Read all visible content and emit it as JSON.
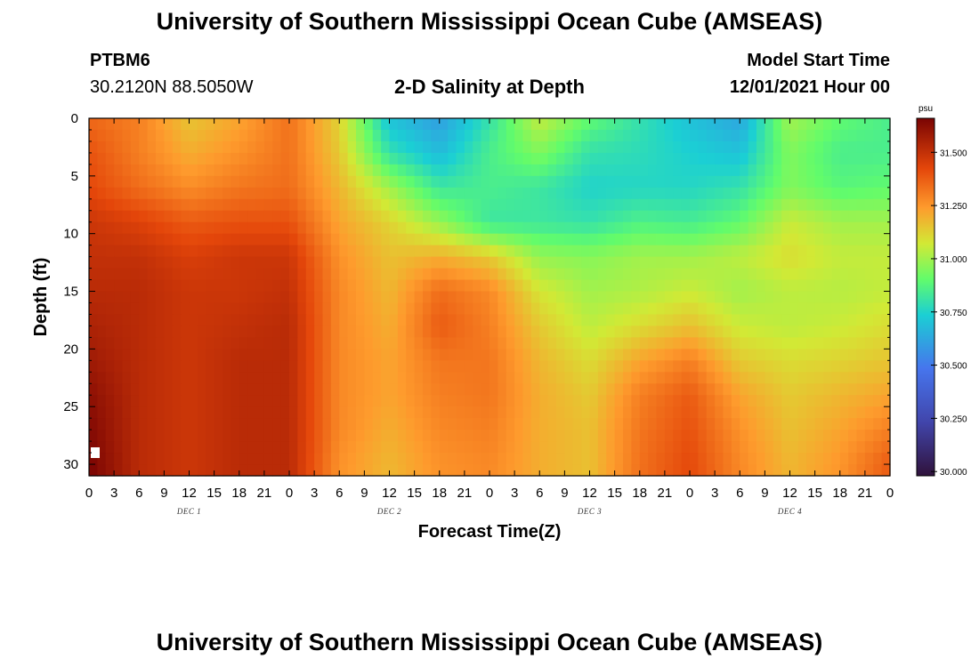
{
  "header": {
    "title": "University of Southern Mississippi Ocean Cube (AMSEAS)",
    "station_id": "PTBM6",
    "station_coords": "30.2120N  88.5050W",
    "plot_title": "2-D Salinity at Depth",
    "model_start_label": "Model Start Time",
    "model_start_value": "12/01/2021 Hour 00"
  },
  "footer": {
    "title": "University of Southern Mississippi Ocean Cube (AMSEAS)"
  },
  "chart_data": {
    "type": "heatmap",
    "title": "2-D Salinity at Depth",
    "xlabel": "Forecast Time(Z)",
    "ylabel": "Depth (ft)",
    "x_tick_labels": [
      "0",
      "3",
      "6",
      "9",
      "12",
      "15",
      "18",
      "21",
      "0",
      "3",
      "6",
      "9",
      "12",
      "15",
      "18",
      "21",
      "0",
      "3",
      "6",
      "9",
      "12",
      "15",
      "18",
      "21",
      "0",
      "3",
      "6",
      "9",
      "12",
      "15",
      "18",
      "21",
      "0"
    ],
    "day_labels": [
      {
        "text": "DEC 1",
        "hour": 12
      },
      {
        "text": "DEC 2",
        "hour": 36
      },
      {
        "text": "DEC 3",
        "hour": 60
      },
      {
        "text": "DEC 4",
        "hour": 84
      }
    ],
    "xlim_hours": [
      0,
      96
    ],
    "y_ticks": [
      0,
      5,
      10,
      15,
      20,
      25,
      30
    ],
    "ylim": [
      0,
      31
    ],
    "y_inverted": true,
    "colorbar": {
      "units": "psu",
      "min": 29.98,
      "max": 31.66,
      "tick_values": [
        30.0,
        30.25,
        30.5,
        30.75,
        31.0,
        31.25,
        31.5
      ],
      "tick_labels": [
        "30.000",
        "30.250",
        "30.500",
        "30.750",
        "31.000",
        "31.250",
        "31.500"
      ]
    },
    "grid_hours": [
      0,
      6,
      12,
      18,
      24,
      30,
      36,
      42,
      48,
      54,
      60,
      66,
      72,
      78,
      84,
      90,
      96
    ],
    "grid_depths_ft": [
      0,
      3,
      6,
      9,
      12,
      15,
      18,
      21,
      24,
      27,
      30,
      31
    ],
    "salinity_psu": [
      [
        31.35,
        31.3,
        31.15,
        31.22,
        31.33,
        31.12,
        30.7,
        30.6,
        30.8,
        31.05,
        30.9,
        30.8,
        30.7,
        30.62,
        31.0,
        30.9,
        30.85
      ],
      [
        31.4,
        31.3,
        31.2,
        31.26,
        31.33,
        31.14,
        30.8,
        30.68,
        30.85,
        30.95,
        30.8,
        30.78,
        30.74,
        30.7,
        30.95,
        30.85,
        30.85
      ],
      [
        31.42,
        31.34,
        31.27,
        31.32,
        31.34,
        31.18,
        31.0,
        30.82,
        30.85,
        30.82,
        30.75,
        30.76,
        30.76,
        30.8,
        30.95,
        30.88,
        30.9
      ],
      [
        31.48,
        31.44,
        31.38,
        31.4,
        31.4,
        31.22,
        31.12,
        30.98,
        30.82,
        30.82,
        30.8,
        30.86,
        30.84,
        30.9,
        31.06,
        31.0,
        31.0
      ],
      [
        31.5,
        31.5,
        31.45,
        31.48,
        31.48,
        31.26,
        31.16,
        31.2,
        31.14,
        30.98,
        30.96,
        31.0,
        31.0,
        31.04,
        31.1,
        31.05,
        31.05
      ],
      [
        31.52,
        31.52,
        31.48,
        31.48,
        31.5,
        31.28,
        31.18,
        31.34,
        31.28,
        31.08,
        31.0,
        31.02,
        31.06,
        31.0,
        31.04,
        31.03,
        31.05
      ],
      [
        31.55,
        31.52,
        31.48,
        31.5,
        31.52,
        31.28,
        31.2,
        31.38,
        31.3,
        31.14,
        31.04,
        31.1,
        31.16,
        31.06,
        31.04,
        31.06,
        31.1
      ],
      [
        31.58,
        31.52,
        31.48,
        31.52,
        31.52,
        31.28,
        31.22,
        31.32,
        31.32,
        31.18,
        31.1,
        31.22,
        31.3,
        31.14,
        31.1,
        31.12,
        31.15
      ],
      [
        31.62,
        31.52,
        31.48,
        31.52,
        31.52,
        31.28,
        31.22,
        31.3,
        31.32,
        31.2,
        31.14,
        31.3,
        31.38,
        31.22,
        31.14,
        31.18,
        31.22
      ],
      [
        31.64,
        31.52,
        31.48,
        31.52,
        31.52,
        31.28,
        31.2,
        31.28,
        31.3,
        31.2,
        31.16,
        31.32,
        31.4,
        31.26,
        31.16,
        31.22,
        31.3
      ],
      [
        31.66,
        31.52,
        31.48,
        31.52,
        31.52,
        31.26,
        31.18,
        31.26,
        31.28,
        31.2,
        31.16,
        31.33,
        31.42,
        31.28,
        31.18,
        31.25,
        31.38
      ],
      [
        31.66,
        31.52,
        31.48,
        31.52,
        31.52,
        31.26,
        31.18,
        31.26,
        31.28,
        31.2,
        31.16,
        31.33,
        31.42,
        31.28,
        31.18,
        31.25,
        31.38
      ]
    ]
  }
}
